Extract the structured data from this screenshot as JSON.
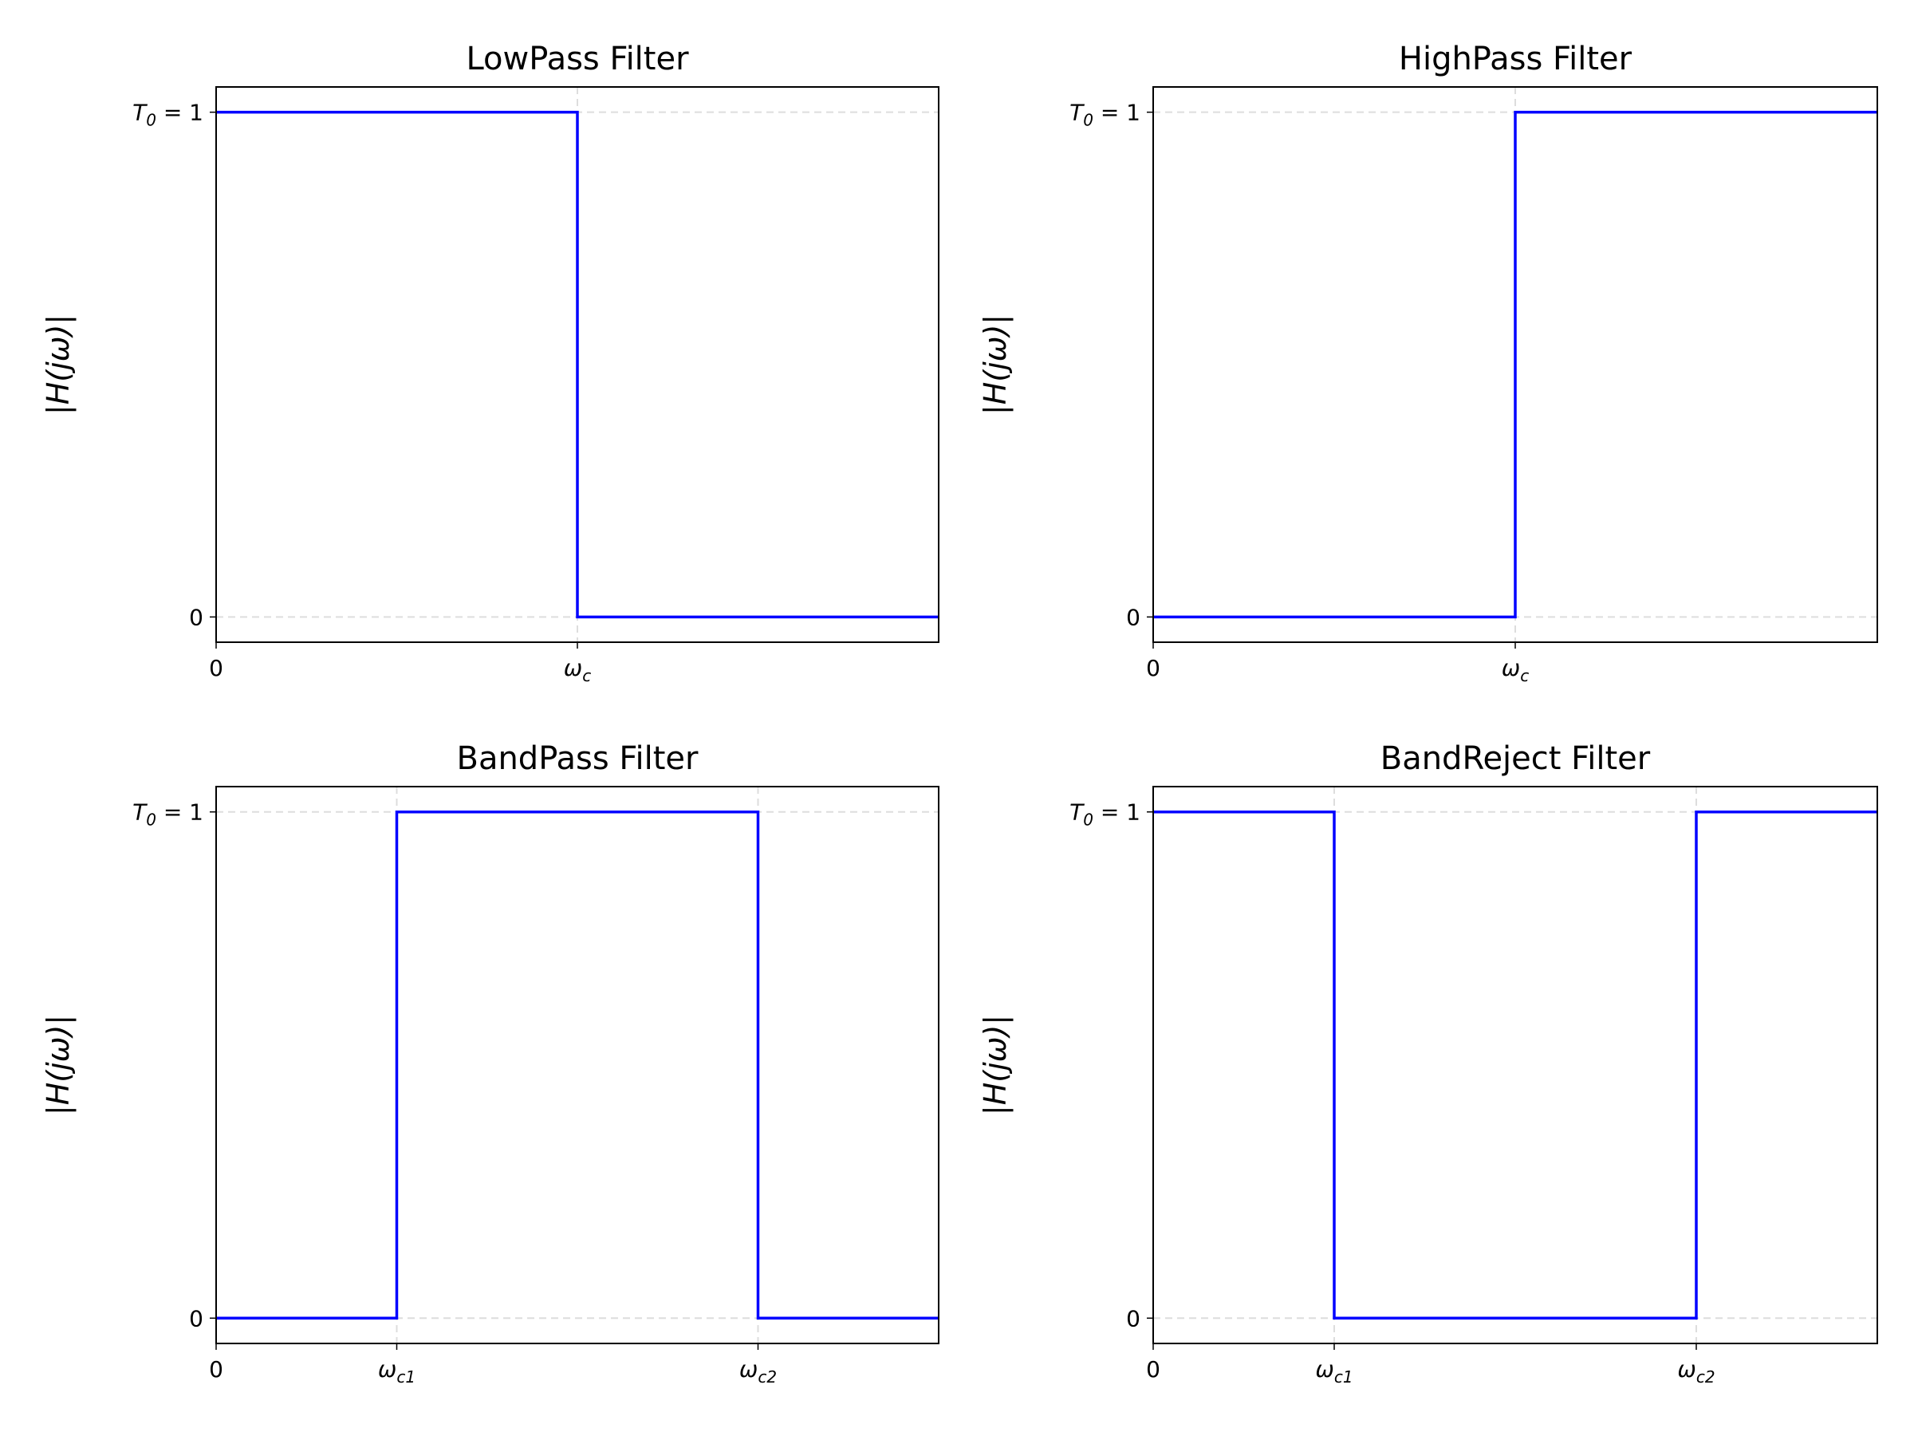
{
  "chart_data": [
    {
      "type": "line",
      "title": "LowPass Filter",
      "y_label": "|H(jω)|",
      "x": [
        0,
        1,
        1,
        2
      ],
      "values": [
        1,
        1,
        0,
        0
      ],
      "color": "#0000ff",
      "xlim": [
        0,
        2
      ],
      "ylim": [
        -0.05,
        1.05
      ],
      "xticks": [
        0,
        {
          "value": 1,
          "label": "ωc"
        }
      ],
      "yticks": [
        0,
        {
          "value": 1,
          "label": "T0 = 1"
        }
      ],
      "grid": true
    },
    {
      "type": "line",
      "title": "HighPass Filter",
      "y_label": "|H(jω)|",
      "x": [
        0,
        1,
        1,
        2
      ],
      "values": [
        0,
        0,
        1,
        1
      ],
      "color": "#0000ff",
      "xlim": [
        0,
        2
      ],
      "ylim": [
        -0.05,
        1.05
      ],
      "xticks": [
        0,
        {
          "value": 1,
          "label": "ωc"
        }
      ],
      "yticks": [
        0,
        {
          "value": 1,
          "label": "T0 = 1"
        }
      ],
      "grid": true
    },
    {
      "type": "line",
      "title": "BandPass Filter",
      "y_label": "|H(jω)|",
      "x": [
        0,
        1,
        1,
        3,
        3,
        4
      ],
      "values": [
        0,
        0,
        1,
        1,
        0,
        0
      ],
      "color": "#0000ff",
      "xlim": [
        0,
        4
      ],
      "ylim": [
        -0.05,
        1.05
      ],
      "xticks": [
        0,
        {
          "value": 1,
          "label": "ωc1"
        },
        {
          "value": 3,
          "label": "ωc2"
        }
      ],
      "yticks": [
        0,
        {
          "value": 1,
          "label": "T0 = 1"
        }
      ],
      "grid": true
    },
    {
      "type": "line",
      "title": "BandReject Filter",
      "y_label": "|H(jω)|",
      "x": [
        0,
        1,
        1,
        3,
        3,
        4
      ],
      "values": [
        1,
        1,
        0,
        0,
        1,
        1
      ],
      "color": "#0000ff",
      "xlim": [
        0,
        4
      ],
      "ylim": [
        -0.05,
        1.05
      ],
      "xticks": [
        0,
        {
          "value": 1,
          "label": "ωc1"
        },
        {
          "value": 3,
          "label": "ωc2"
        }
      ],
      "yticks": [
        0,
        {
          "value": 1,
          "label": "T0 = 1"
        }
      ],
      "grid": true
    }
  ]
}
